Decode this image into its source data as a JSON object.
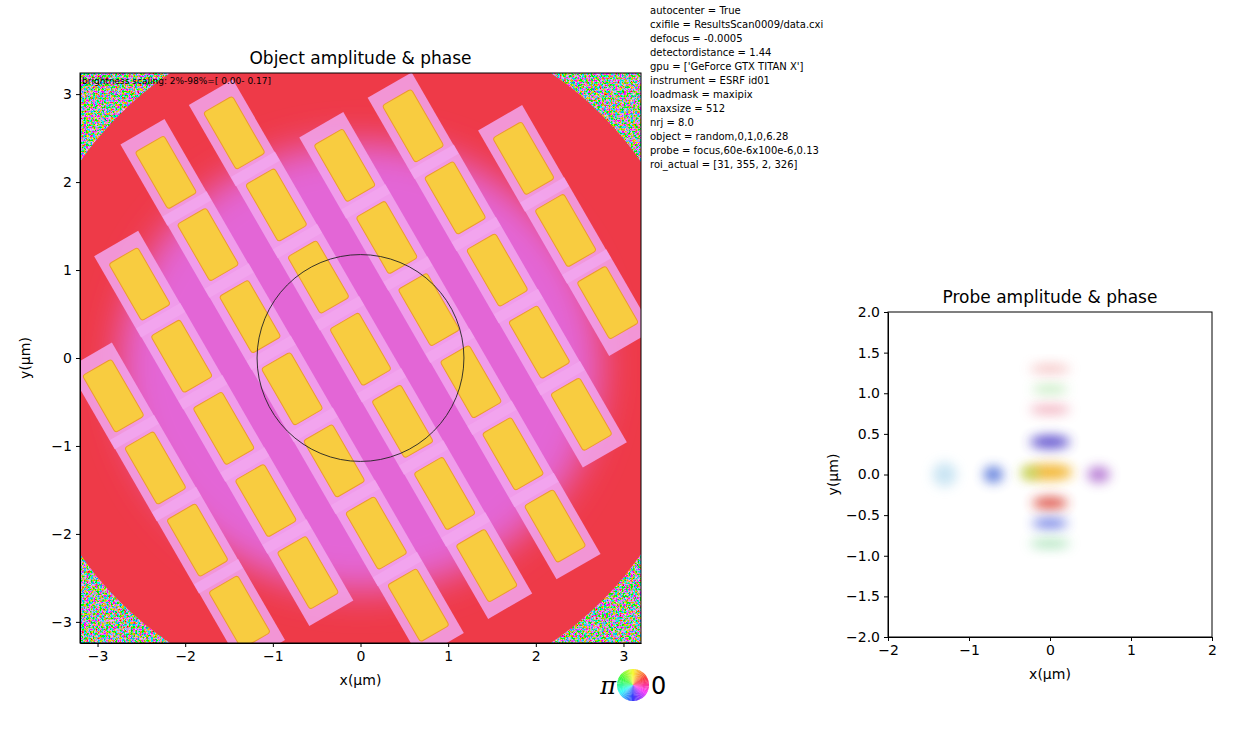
{
  "chart_data": [
    {
      "type": "image",
      "title": "Object amplitude & phase",
      "xlabel": "x(µm)",
      "ylabel": "y(µm)",
      "xlim": [
        -3.2,
        3.2
      ],
      "ylim": [
        -3.24,
        3.24
      ],
      "xticks": [
        {
          "value": -3,
          "label": "−3"
        },
        {
          "value": -2,
          "label": "−2"
        },
        {
          "value": -1,
          "label": "−1"
        },
        0,
        1,
        2,
        3
      ],
      "yticks": [
        {
          "value": -3,
          "label": "−3"
        },
        {
          "value": -2,
          "label": "−2"
        },
        {
          "value": -1,
          "label": "−1"
        },
        0,
        1,
        2,
        3
      ],
      "annotation": "brightness scaling: 2%-98%=[ 0.00- 0.17]",
      "params": [
        "autocenter = True",
        "cxifile = ResultsScan0009/data.cxi",
        "defocus = -0.0005",
        "detectordistance = 1.44",
        "gpu = ['GeForce GTX TITAN X']",
        "instrument = ESRF id01",
        "loadmask = maxipix",
        "maxsize = 512",
        "nrj = 8.0",
        "object = random,0,1,0,6.28",
        "probe = focus,60e-6x100e-6,0.13",
        "roi_actual = [31, 355, 2, 326]"
      ],
      "pads": {
        "x": [
          -2.82,
          -2.34,
          -1.86,
          -1.38,
          -2.52,
          -2.04,
          -1.56,
          -1.08,
          -0.6,
          -2.22,
          -1.74,
          -1.26,
          -0.78,
          -0.3,
          0.18,
          0.66,
          -1.44,
          -0.96,
          -0.48,
          0,
          0.48,
          0.96,
          1.44,
          -0.18,
          0.3,
          0.78,
          1.26,
          1.74,
          2.22,
          0.6,
          1.08,
          1.56,
          2.04,
          2.52,
          1.86,
          2.34,
          2.82
        ],
        "y": [
          -0.43,
          -1.25,
          -2.07,
          -2.89,
          0.84,
          0.02,
          -0.8,
          -1.62,
          -2.44,
          2.11,
          1.29,
          0.47,
          -0.35,
          -1.17,
          -1.99,
          -2.81,
          2.56,
          1.74,
          0.92,
          0.1,
          -0.72,
          -1.54,
          -2.36,
          2.19,
          1.37,
          0.55,
          -0.27,
          -1.09,
          -1.91,
          2.64,
          1.82,
          1.0,
          0.18,
          -0.64,
          2.27,
          1.45,
          0.63
        ],
        "width": 0.38,
        "length": 0.75
      },
      "contour": {
        "x": 0,
        "y": 0,
        "radius": 1.18
      },
      "colorwheel": {
        "labels": [
          "π",
          "0"
        ]
      }
    },
    {
      "type": "image",
      "title": "Probe amplitude & phase",
      "xlabel": "x(µm)",
      "ylabel": "y(µm)",
      "xlim": [
        -2,
        2
      ],
      "ylim": [
        -2,
        2
      ],
      "xticks": [
        {
          "value": -2,
          "label": "−2"
        },
        {
          "value": -1,
          "label": "−1"
        },
        0,
        1,
        2
      ],
      "yticks": [
        {
          "value": -2,
          "label": "−2.0"
        },
        {
          "value": -1.5,
          "label": "−1.5"
        },
        {
          "value": -1,
          "label": "−1.0"
        },
        {
          "value": -0.5,
          "label": "−0.5"
        },
        {
          "value": 0,
          "label": "0.0"
        },
        {
          "value": 0.5,
          "label": "0.5"
        },
        {
          "value": 1,
          "label": "1.0"
        },
        {
          "value": 1.5,
          "label": "1.5"
        },
        {
          "value": 2,
          "label": "2.0"
        }
      ],
      "blobs": {
        "x": [
          0,
          -0.25,
          0,
          0,
          0,
          -0.7,
          0.6,
          0,
          0,
          0,
          -1.3,
          0
        ],
        "y": [
          0.03,
          0.02,
          0.4,
          -0.35,
          -0.6,
          0.0,
          0.0,
          0.8,
          1.05,
          1.3,
          0.0,
          -0.85
        ],
        "rx": [
          0.28,
          0.12,
          0.25,
          0.22,
          0.22,
          0.12,
          0.14,
          0.25,
          0.22,
          0.25,
          0.15,
          0.25
        ],
        "ry": [
          0.1,
          0.08,
          0.08,
          0.07,
          0.06,
          0.1,
          0.1,
          0.06,
          0.05,
          0.06,
          0.15,
          0.06
        ],
        "colors": [
          "#f2b020",
          "#b8d048",
          "#4b3ac8",
          "#d8382c",
          "#5a6be0",
          "#4d6ed8",
          "#b070d0",
          "#f0a8b8",
          "#b8e6b0",
          "#f4c0c0",
          "#c4e2f2",
          "#a8e2b8"
        ]
      }
    }
  ]
}
